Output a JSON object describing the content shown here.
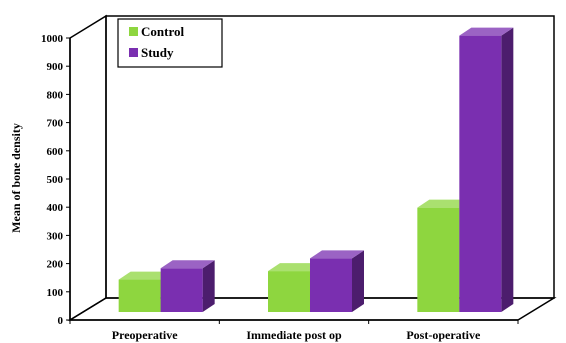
{
  "chart_data": {
    "type": "bar",
    "title": "",
    "xlabel": "",
    "ylabel": "Mean of bone density",
    "categories": [
      "Preoperative",
      "Immediate post op",
      "Post-operative"
    ],
    "series": [
      {
        "name": "Control",
        "color": "#8ed63f",
        "values": [
          115,
          145,
          370
        ]
      },
      {
        "name": "Study",
        "color": "#7a2fb0",
        "values": [
          155,
          190,
          980
        ]
      }
    ],
    "ylim": [
      0,
      1000
    ],
    "yticks": [
      0,
      100,
      200,
      300,
      400,
      500,
      600,
      700,
      800,
      900,
      1000
    ],
    "grid": false,
    "legend_position": "top-left",
    "three_d": true
  }
}
